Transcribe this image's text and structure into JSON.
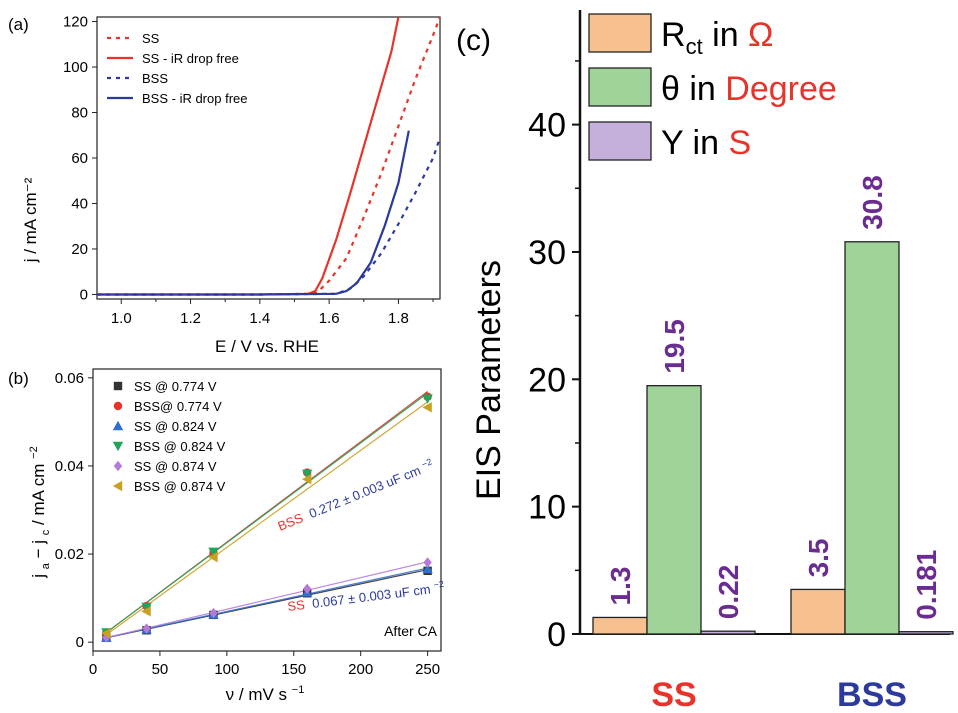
{
  "panels": {
    "a": {
      "label": "(a)",
      "chart_data": {
        "type": "line",
        "xlabel": "E / V vs. RHE",
        "ylabel": "j / mA cm⁻²",
        "xlim": [
          0.93,
          1.92
        ],
        "ylim": [
          -2,
          122
        ],
        "xticks": [
          "1.0",
          "1.2",
          "1.4",
          "1.6",
          "1.8"
        ],
        "yticks": [
          "0",
          "20",
          "40",
          "60",
          "80",
          "100",
          "120"
        ],
        "legend_position": "top-left",
        "series": [
          {
            "name": "SS",
            "color": "#e8332a",
            "dash": "dotted",
            "x": [
              0.93,
              1.4,
              1.55,
              1.57,
              1.6,
              1.65,
              1.7,
              1.75,
              1.8,
              1.85,
              1.9,
              1.92
            ],
            "y": [
              0,
              0,
              0.3,
              1.5,
              6,
              16,
              34,
              53,
              74,
              95,
              114,
              122
            ]
          },
          {
            "name": "SS - iR drop free",
            "color": "#e8332a",
            "dash": "solid",
            "x": [
              0.93,
              1.4,
              1.54,
              1.56,
              1.58,
              1.62,
              1.66,
              1.7,
              1.74,
              1.78,
              1.8
            ],
            "y": [
              0,
              0,
              0.3,
              1.5,
              7,
              24,
              44,
              65,
              86,
              107,
              122
            ]
          },
          {
            "name": "BSS",
            "color": "#2b3a9c",
            "dash": "dotted",
            "x": [
              0.93,
              1.4,
              1.62,
              1.66,
              1.7,
              1.75,
              1.8,
              1.85,
              1.9,
              1.92
            ],
            "y": [
              0,
              0,
              0.3,
              2.5,
              8,
              18,
              31,
              45,
              60,
              69
            ]
          },
          {
            "name": "BSS - iR drop free",
            "color": "#2b3a9c",
            "dash": "solid",
            "x": [
              0.93,
              1.4,
              1.62,
              1.65,
              1.68,
              1.72,
              1.76,
              1.8,
              1.83
            ],
            "y": [
              0,
              0,
              0.3,
              1.5,
              5,
              14,
              30,
              49,
              72
            ]
          }
        ]
      }
    },
    "b": {
      "label": "(b)",
      "chart_data": {
        "type": "scatter",
        "xlabel_main": "ν / mV s",
        "xlabel_sup": "−1",
        "ylabel_parts": {
          "j": "j",
          "sub_a": "a",
          "minus": " − j",
          "sub_c": "c",
          "tail": " / mA cm",
          "sup": "−2"
        },
        "xlim": [
          0,
          260
        ],
        "ylim": [
          -0.002,
          0.062
        ],
        "xticks": [
          "0",
          "50",
          "100",
          "150",
          "200",
          "250"
        ],
        "yticks": [
          "0",
          "0.02",
          "0.04",
          "0.06"
        ],
        "legend_position": "top-left",
        "annotations": {
          "bss_fit": {
            "name": "BSS",
            "value": "0.272 ± 0.003 uF cm",
            "sup": "−2"
          },
          "ss_fit": {
            "name": "SS",
            "value": "0.067 ± 0.003 uF cm",
            "sup": "−2"
          },
          "note": "After CA"
        },
        "series": [
          {
            "name": "SS @ 0.774 V",
            "color": "#333333",
            "marker": "square",
            "x": [
              10,
              40,
              90,
              160,
              250
            ],
            "y": [
              0.001,
              0.0027,
              0.0062,
              0.0111,
              0.0162
            ]
          },
          {
            "name": "BSS@ 0.774 V",
            "color": "#e8332a",
            "marker": "circle",
            "x": [
              10,
              40,
              90,
              160,
              250
            ],
            "y": [
              0.0022,
              0.0082,
              0.0203,
              0.0385,
              0.0557
            ]
          },
          {
            "name": "SS @ 0.824 V",
            "color": "#2f6fd1",
            "marker": "triangle-up",
            "x": [
              10,
              40,
              90,
              160,
              250
            ],
            "y": [
              0.001,
              0.0029,
              0.0063,
              0.0113,
              0.0166
            ]
          },
          {
            "name": "BSS @ 0.824 V",
            "color": "#22a45a",
            "marker": "triangle-down",
            "x": [
              10,
              40,
              90,
              160,
              250
            ],
            "y": [
              0.0022,
              0.008,
              0.0205,
              0.0382,
              0.0553
            ]
          },
          {
            "name": "SS @ 0.874 V",
            "color": "#b57ad8",
            "marker": "diamond",
            "x": [
              10,
              40,
              90,
              160,
              250
            ],
            "y": [
              0.0011,
              0.0031,
              0.0066,
              0.0121,
              0.0181
            ]
          },
          {
            "name": "BSS @ 0.874 V",
            "color": "#c9a020",
            "marker": "triangle-left",
            "x": [
              10,
              40,
              90,
              160,
              250
            ],
            "y": [
              0.002,
              0.007,
              0.0193,
              0.037,
              0.0533
            ]
          }
        ]
      }
    },
    "c": {
      "label": "(c)",
      "chart_data": {
        "type": "bar",
        "ylabel": "EIS Parameters",
        "ylim": [
          0,
          49
        ],
        "yticks": [
          "0",
          "10",
          "20",
          "30",
          "40"
        ],
        "categories": [
          "SS",
          "BSS"
        ],
        "category_colors": [
          "#e8332a",
          "#2b3a9c"
        ],
        "legend_position": "top-left",
        "legend": [
          {
            "symbol": "R",
            "sub": "ct",
            "mid": " in ",
            "unit": "Ω",
            "color": "#f6c08f"
          },
          {
            "symbol": "θ",
            "sub": "",
            "mid": " in ",
            "unit": "Degree",
            "color": "#9fd39a"
          },
          {
            "symbol": "Y",
            "sub": "",
            "mid": " in ",
            "unit": "S",
            "color": "#c5b0dc"
          }
        ],
        "unit_color": "#e8332a",
        "label_color": "#6a2c91",
        "series": [
          {
            "name": "Rct",
            "color": "#f6c08f",
            "values": [
              1.3,
              3.5
            ],
            "labels": [
              "1.3",
              "3.5"
            ]
          },
          {
            "name": "theta",
            "color": "#9fd39a",
            "values": [
              19.5,
              30.8
            ],
            "labels": [
              "19.5",
              "30.8"
            ]
          },
          {
            "name": "Y",
            "color": "#c5b0dc",
            "values": [
              0.22,
              0.181
            ],
            "labels": [
              "0.22",
              "0.181"
            ]
          }
        ]
      }
    }
  }
}
